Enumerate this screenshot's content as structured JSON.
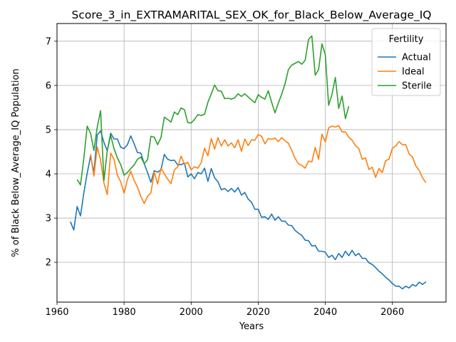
{
  "chart_data": {
    "type": "line",
    "title": "Score_3_in_EXTRAMARITAL_SEX_OK_for_Black_Below_Average_IQ",
    "xlabel": "Years",
    "ylabel": "% of Black Below_Average_IQ Population",
    "xlim": [
      1960,
      2076
    ],
    "ylim": [
      1.1,
      7.4
    ],
    "xticks": [
      1960,
      1980,
      2000,
      2020,
      2040,
      2060
    ],
    "yticks": [
      2,
      3,
      4,
      5,
      6,
      7
    ],
    "grid": true,
    "legend": {
      "title": "Fertility",
      "placement": "top-right"
    },
    "series": [
      {
        "name": "Actual",
        "color": "#1f77b4",
        "x": [
          1964,
          1965,
          1966,
          1967,
          1968,
          1969,
          1970,
          1971,
          1972,
          1973,
          1974,
          1975,
          1976,
          1977,
          1978,
          1979,
          1980,
          1981,
          1982,
          1983,
          1984,
          1985,
          1986,
          1987,
          1988,
          1989,
          1990,
          1991,
          1992,
          1993,
          1994,
          1995,
          1996,
          1997,
          1998,
          1999,
          2000,
          2001,
          2002,
          2003,
          2004,
          2005,
          2006,
          2007,
          2008,
          2009,
          2010,
          2011,
          2012,
          2013,
          2014,
          2015,
          2016,
          2017,
          2018,
          2019,
          2020,
          2021,
          2022,
          2023,
          2024,
          2025,
          2026,
          2027,
          2028,
          2029,
          2030,
          2031,
          2032,
          2033,
          2034,
          2035,
          2036,
          2037,
          2038,
          2039,
          2040,
          2041,
          2042,
          2043,
          2044,
          2045,
          2046,
          2047,
          2048,
          2049,
          2050,
          2051,
          2052,
          2053,
          2054,
          2055,
          2056,
          2057,
          2058,
          2059,
          2060,
          2061,
          2062,
          2063,
          2064,
          2065,
          2066,
          2067,
          2068,
          2069,
          2070
        ],
        "y": [
          2.92,
          2.73,
          3.26,
          3.05,
          3.57,
          4.01,
          4.4,
          4.03,
          4.88,
          4.97,
          4.71,
          4.52,
          4.92,
          4.79,
          4.79,
          4.6,
          4.57,
          4.66,
          4.86,
          4.68,
          4.48,
          4.47,
          4.23,
          4.03,
          3.81,
          4.07,
          4.04,
          4.09,
          4.44,
          4.33,
          4.3,
          4.31,
          4.2,
          4.21,
          4.24,
          3.93,
          4.0,
          3.89,
          4.03,
          4.0,
          4.13,
          3.83,
          4.12,
          3.91,
          3.82,
          3.64,
          3.67,
          3.6,
          3.67,
          3.59,
          3.69,
          3.52,
          3.58,
          3.43,
          3.36,
          3.2,
          3.2,
          3.02,
          3.03,
          2.97,
          3.09,
          2.95,
          3.03,
          2.93,
          2.93,
          2.84,
          2.83,
          2.72,
          2.66,
          2.61,
          2.5,
          2.49,
          2.37,
          2.38,
          2.25,
          2.25,
          2.23,
          2.11,
          2.16,
          2.06,
          2.2,
          2.11,
          2.25,
          2.15,
          2.27,
          2.15,
          2.2,
          2.09,
          2.09,
          1.99,
          1.95,
          1.88,
          1.8,
          1.74,
          1.66,
          1.6,
          1.52,
          1.46,
          1.46,
          1.4,
          1.46,
          1.42,
          1.5,
          1.46,
          1.55,
          1.5,
          1.56
        ]
      },
      {
        "name": "Ideal",
        "color": "#ff7f0e",
        "x": [
          1970,
          1971,
          1972,
          1973,
          1974,
          1975,
          1976,
          1977,
          1978,
          1979,
          1980,
          1981,
          1982,
          1983,
          1984,
          1985,
          1986,
          1987,
          1988,
          1989,
          1990,
          1991,
          1992,
          1993,
          1994,
          1995,
          1996,
          1997,
          1998,
          1999,
          2000,
          2001,
          2002,
          2003,
          2004,
          2005,
          2006,
          2007,
          2008,
          2009,
          2010,
          2011,
          2012,
          2013,
          2014,
          2015,
          2016,
          2017,
          2018,
          2019,
          2020,
          2021,
          2022,
          2023,
          2024,
          2025,
          2026,
          2027,
          2028,
          2029,
          2030,
          2031,
          2032,
          2033,
          2034,
          2035,
          2036,
          2037,
          2038,
          2039,
          2040,
          2041,
          2042,
          2043,
          2044,
          2045,
          2046,
          2047,
          2048,
          2049,
          2050,
          2051,
          2052,
          2053,
          2054,
          2055,
          2056,
          2057,
          2058,
          2059,
          2060,
          2061,
          2062,
          2063,
          2064,
          2065,
          2066,
          2067,
          2068,
          2069,
          2070
        ],
        "y": [
          4.45,
          3.95,
          4.61,
          4.31,
          3.79,
          3.53,
          4.47,
          4.33,
          3.97,
          3.82,
          3.56,
          3.87,
          4.06,
          3.85,
          3.7,
          3.49,
          3.33,
          3.49,
          3.57,
          4.04,
          3.77,
          4.13,
          4.0,
          3.88,
          3.78,
          4.09,
          4.16,
          4.4,
          4.22,
          4.26,
          4.09,
          4.16,
          4.13,
          4.25,
          4.58,
          4.41,
          4.8,
          4.56,
          4.82,
          4.63,
          4.77,
          4.63,
          4.7,
          4.59,
          4.77,
          4.51,
          4.79,
          4.64,
          4.77,
          4.76,
          4.89,
          4.85,
          4.68,
          4.8,
          4.78,
          4.81,
          4.73,
          4.82,
          4.75,
          4.69,
          4.53,
          4.35,
          4.23,
          4.19,
          4.13,
          4.29,
          4.27,
          4.6,
          4.33,
          4.9,
          4.72,
          5.04,
          5.08,
          5.06,
          5.09,
          4.95,
          4.95,
          4.83,
          4.76,
          4.64,
          4.57,
          4.33,
          4.36,
          4.1,
          4.15,
          3.92,
          4.12,
          4.03,
          4.3,
          4.33,
          4.58,
          4.63,
          4.73,
          4.66,
          4.66,
          4.45,
          4.38,
          4.18,
          4.08,
          3.91,
          3.8
        ]
      },
      {
        "name": "Sterile",
        "color": "#2ca02c",
        "x": [
          1966,
          1967,
          1968,
          1969,
          1970,
          1971,
          1972,
          1973,
          1974,
          1975,
          1976,
          1977,
          1978,
          1979,
          1980,
          1981,
          1982,
          1983,
          1984,
          1985,
          1986,
          1987,
          1988,
          1989,
          1990,
          1991,
          1992,
          1993,
          1994,
          1995,
          1996,
          1997,
          1998,
          1999,
          2000,
          2001,
          2002,
          2003,
          2004,
          2005,
          2006,
          2007,
          2008,
          2009,
          2010,
          2011,
          2012,
          2013,
          2014,
          2015,
          2016,
          2017,
          2018,
          2019,
          2020,
          2021,
          2022,
          2023,
          2024,
          2025,
          2026,
          2027,
          2028,
          2029,
          2030,
          2031,
          2032,
          2033,
          2034,
          2035,
          2036,
          2037,
          2038,
          2039,
          2040,
          2041,
          2042,
          2043,
          2044,
          2045,
          2046,
          2047
        ],
        "y": [
          3.87,
          3.75,
          4.35,
          5.08,
          4.92,
          4.53,
          5.06,
          5.43,
          3.85,
          4.53,
          4.87,
          4.57,
          4.36,
          4.21,
          3.97,
          4.03,
          4.12,
          4.2,
          4.33,
          4.38,
          4.23,
          4.32,
          4.85,
          4.83,
          4.66,
          4.82,
          5.28,
          5.23,
          5.17,
          5.4,
          5.34,
          5.49,
          5.45,
          5.16,
          5.15,
          5.23,
          5.34,
          5.32,
          5.35,
          5.62,
          5.81,
          6.01,
          5.88,
          5.87,
          5.7,
          5.71,
          5.69,
          5.72,
          5.81,
          5.75,
          5.81,
          5.74,
          5.67,
          5.61,
          5.79,
          5.73,
          5.69,
          5.88,
          5.62,
          5.38,
          5.6,
          5.8,
          6.04,
          6.36,
          6.46,
          6.5,
          6.54,
          6.48,
          6.57,
          7.04,
          7.12,
          6.23,
          6.36,
          6.94,
          6.7,
          5.55,
          5.8,
          6.18,
          5.48,
          5.76,
          5.25,
          5.53
        ]
      }
    ]
  }
}
